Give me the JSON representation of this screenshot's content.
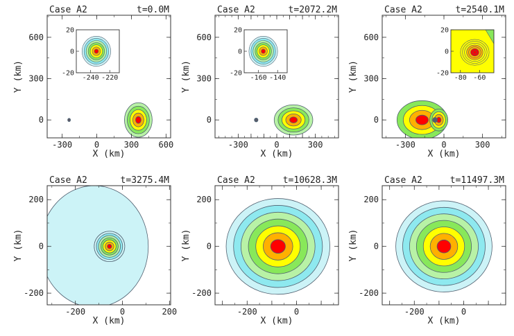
{
  "colors": {
    "c1": "#ccf3f7",
    "c2": "#8ee9ef",
    "c3": "#b8f2a6",
    "c4": "#88e85a",
    "c5": "#ffff00",
    "c6": "#ffb000",
    "c7": "#ff0000",
    "line": "#506070"
  },
  "chart_data": [
    {
      "type": "contour",
      "title": "Case A2",
      "time": "t=0.0M",
      "xlabel": "X (km)",
      "ylabel": "Y (km)",
      "xlim": [
        -430,
        640
      ],
      "ylim": [
        -130,
        760
      ],
      "xticks": [
        -300,
        0,
        300,
        600
      ],
      "yticks": [
        0,
        300,
        600
      ],
      "blobs": [
        {
          "cx": 360,
          "cy": 0,
          "rx": 120,
          "ry": 125,
          "levels": 5
        },
        {
          "cx": -240,
          "cy": 0,
          "rx": 12,
          "ry": 12,
          "levels": 7
        }
      ],
      "inset": {
        "xlim": [
          -255,
          -210
        ],
        "ylim": [
          -20,
          20
        ],
        "xticks": [
          -240,
          -220
        ],
        "yticks": [
          -20,
          0,
          20
        ],
        "cx": -234,
        "cy": 0,
        "rx": 15,
        "ry": 14,
        "levels": 7
      }
    },
    {
      "type": "contour",
      "title": "Case A2",
      "time": "t=2072.2M",
      "xlabel": "X (km)",
      "ylabel": "Y (km)",
      "xlim": [
        -480,
        480
      ],
      "ylim": [
        -130,
        760
      ],
      "xticks": [
        -300,
        -200,
        -100,
        0,
        100,
        200,
        300
      ],
      "xtick_labels": [
        "-300",
        "0",
        "300"
      ],
      "yticks": [
        0,
        300,
        600
      ],
      "blobs": [
        {
          "cx": 130,
          "cy": 0,
          "rx": 150,
          "ry": 110,
          "levels": 5
        },
        {
          "cx": -160,
          "cy": 0,
          "rx": 14,
          "ry": 14,
          "levels": 7
        }
      ],
      "inset": {
        "xlim": [
          -175,
          -130
        ],
        "ylim": [
          -20,
          20
        ],
        "xticks": [
          -160,
          -140
        ],
        "yticks": [
          -20,
          0,
          20
        ],
        "cx": -155,
        "cy": 0,
        "rx": 15,
        "ry": 14,
        "levels": 7
      }
    },
    {
      "type": "contour",
      "title": "Case A2",
      "time": "t=2540.1M",
      "xlabel": "X (km)",
      "ylabel": "Y (km)",
      "xlim": [
        -480,
        480
      ],
      "ylim": [
        -130,
        760
      ],
      "xticks": [
        -300,
        0,
        300
      ],
      "yticks": [
        0,
        300,
        600
      ],
      "blobs": [
        {
          "cx": -170,
          "cy": 0,
          "rx": 195,
          "ry": 140,
          "levels": 4
        },
        {
          "cx": -40,
          "cy": 0,
          "rx": 70,
          "ry": 80,
          "levels": 4
        },
        {
          "cx": -70,
          "cy": 0,
          "rx": 18,
          "ry": 18,
          "levels": 7
        }
      ],
      "inset": {
        "xlim": [
          -90,
          -45
        ],
        "ylim": [
          -20,
          20
        ],
        "xticks": [
          -80,
          -60
        ],
        "yticks": [
          -20,
          0,
          20
        ],
        "cx": -65,
        "cy": -1,
        "rx": 15,
        "ry": 12,
        "levels": 7,
        "fill_background": true
      }
    },
    {
      "type": "contour",
      "title": "Case A2",
      "time": "t=3275.4M",
      "xlabel": "X (km)",
      "ylabel": "Y (km)",
      "xlim": [
        -320,
        205
      ],
      "ylim": [
        -250,
        260
      ],
      "xticks": [
        -200,
        0,
        200
      ],
      "yticks": [
        -200,
        0,
        200
      ],
      "blobs": [
        {
          "cx": -120,
          "cy": 0,
          "rx": 230,
          "ry": 260,
          "levels": 1,
          "cut_left": true
        },
        {
          "cx": -55,
          "cy": 0,
          "rx": 65,
          "ry": 65,
          "levels": 7
        }
      ]
    },
    {
      "type": "contour",
      "title": "Case A2",
      "time": "t=10628.3M",
      "xlabel": "X (km)",
      "ylabel": "Y (km)",
      "xlim": [
        -330,
        170
      ],
      "ylim": [
        -250,
        260
      ],
      "xticks": [
        -300,
        -200,
        -100,
        0,
        100
      ],
      "xtick_labels": [
        "-200",
        "0"
      ],
      "yticks": [
        -200,
        0,
        200
      ],
      "blobs": [
        {
          "cx": -75,
          "cy": 0,
          "rx": 210,
          "ry": 205,
          "levels": 7
        }
      ]
    },
    {
      "type": "contour",
      "title": "Case A2",
      "time": "t=11497.3M",
      "xlabel": "X (km)",
      "ylabel": "Y (km)",
      "xlim": [
        -330,
        170
      ],
      "ylim": [
        -250,
        260
      ],
      "xticks": [
        -300,
        -200,
        -100,
        0,
        100
      ],
      "xtick_labels": [
        "-200",
        "0"
      ],
      "yticks": [
        -200,
        0,
        200
      ],
      "blobs": [
        {
          "cx": -80,
          "cy": 0,
          "rx": 195,
          "ry": 195,
          "levels": 7
        }
      ]
    }
  ]
}
